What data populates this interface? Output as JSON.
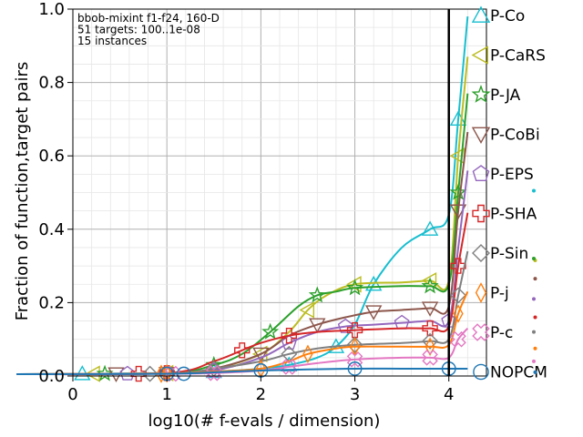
{
  "chart_data": {
    "type": "line",
    "annotation_lines": [
      "bbob-mixint f1-f24, 160-D",
      "51 targets: 100..1e-08",
      "15 instances"
    ],
    "xlabel": "log10(# f-evals / dimension)",
    "ylabel": "Fraction of function,target pairs",
    "xlim": [
      0,
      4.4
    ],
    "ylim": [
      0,
      1
    ],
    "x_ticks": [
      "0",
      "1",
      "2",
      "3",
      "4"
    ],
    "y_ticks": [
      "0.0",
      "0.2",
      "0.4",
      "0.6",
      "0.8",
      "1.0"
    ],
    "budget_line_x": 4,
    "grid": true,
    "legend_placement": "right",
    "series": [
      {
        "name": "P-Co",
        "color": "#17becf",
        "marker": "triangle-up",
        "x": [
          -0.6,
          1.0,
          1.5,
          2.0,
          2.3,
          2.6,
          2.8,
          3.0,
          3.2,
          3.5,
          3.8,
          4.0,
          4.1,
          4.2
        ],
        "y": [
          0.005,
          0.008,
          0.012,
          0.02,
          0.03,
          0.05,
          0.08,
          0.14,
          0.25,
          0.35,
          0.4,
          0.44,
          0.7,
          0.98
        ],
        "end_y": 0.98
      },
      {
        "name": "P-CaRS",
        "color": "#bcbd22",
        "marker": "triangle-left",
        "x": [
          -0.6,
          1.0,
          1.5,
          2.0,
          2.3,
          2.5,
          2.7,
          3.0,
          3.5,
          3.8,
          4.0,
          4.1,
          4.2
        ],
        "y": [
          0.005,
          0.008,
          0.02,
          0.06,
          0.12,
          0.18,
          0.22,
          0.25,
          0.255,
          0.26,
          0.26,
          0.6,
          0.87
        ],
        "end_y": 0.87
      },
      {
        "name": "P-JA",
        "color": "#2ca02c",
        "marker": "star",
        "x": [
          -0.6,
          1.0,
          1.5,
          1.8,
          2.1,
          2.4,
          2.6,
          2.8,
          3.0,
          3.5,
          3.8,
          4.0,
          4.1,
          4.2
        ],
        "y": [
          0.005,
          0.008,
          0.03,
          0.06,
          0.12,
          0.19,
          0.22,
          0.23,
          0.24,
          0.245,
          0.245,
          0.25,
          0.5,
          0.77
        ],
        "end_y": 0.77
      },
      {
        "name": "P-CoBi",
        "color": "#8c564b",
        "marker": "triangle-down",
        "x": [
          -0.6,
          1.0,
          1.5,
          2.0,
          2.3,
          2.6,
          2.9,
          3.2,
          3.5,
          3.8,
          4.0,
          4.1,
          4.2
        ],
        "y": [
          0.005,
          0.007,
          0.02,
          0.06,
          0.11,
          0.14,
          0.16,
          0.175,
          0.18,
          0.185,
          0.19,
          0.45,
          0.665
        ],
        "end_y": 0.665
      },
      {
        "name": "P-EPS",
        "color": "#9467bd",
        "marker": "pentagon",
        "x": [
          -0.6,
          1.0,
          1.5,
          2.0,
          2.3,
          2.6,
          2.9,
          3.2,
          3.5,
          3.8,
          4.0,
          4.1,
          4.2
        ],
        "y": [
          0.005,
          0.007,
          0.015,
          0.05,
          0.09,
          0.12,
          0.135,
          0.14,
          0.145,
          0.15,
          0.15,
          0.35,
          0.56
        ],
        "end_y": 0.56
      },
      {
        "name": "P-SHA",
        "color": "#d62728",
        "marker": "plus",
        "x": [
          -0.6,
          1.0,
          1.5,
          1.8,
          2.0,
          2.3,
          2.6,
          3.0,
          3.5,
          3.8,
          4.0,
          4.1,
          4.2
        ],
        "y": [
          0.005,
          0.008,
          0.04,
          0.07,
          0.09,
          0.11,
          0.12,
          0.125,
          0.13,
          0.13,
          0.135,
          0.3,
          0.445
        ],
        "end_y": 0.445
      },
      {
        "name": "P-Sin",
        "color": "#7f7f7f",
        "marker": "diamond",
        "x": [
          -0.6,
          1.0,
          1.5,
          2.0,
          2.3,
          2.6,
          3.0,
          3.5,
          3.8,
          4.0,
          4.1,
          4.2
        ],
        "y": [
          0.005,
          0.007,
          0.02,
          0.04,
          0.06,
          0.075,
          0.085,
          0.09,
          0.095,
          0.1,
          0.22,
          0.34
        ],
        "end_y": 0.34
      },
      {
        "name": "P-j",
        "color": "#ff7f0e",
        "marker": "diamond-thin",
        "x": [
          -0.6,
          1.0,
          1.5,
          2.0,
          2.3,
          2.5,
          2.8,
          3.0,
          3.5,
          3.8,
          4.0,
          4.1,
          4.2
        ],
        "y": [
          0.005,
          0.007,
          0.012,
          0.02,
          0.04,
          0.06,
          0.075,
          0.08,
          0.08,
          0.08,
          0.085,
          0.17,
          0.23
        ],
        "end_y": 0.23
      },
      {
        "name": "P-c",
        "color": "#e377c2",
        "marker": "cross",
        "x": [
          -0.6,
          1.0,
          1.5,
          2.0,
          2.3,
          2.6,
          3.0,
          3.5,
          3.8,
          4.0,
          4.1,
          4.2
        ],
        "y": [
          0.005,
          0.006,
          0.008,
          0.015,
          0.025,
          0.035,
          0.045,
          0.05,
          0.05,
          0.05,
          0.1,
          0.13
        ],
        "end_y": 0.13
      },
      {
        "name": "NOPCM",
        "color": "#1f77b4",
        "marker": "circle",
        "x": [
          -0.6,
          1.0,
          1.5,
          2.0,
          2.5,
          3.0,
          3.5,
          4.0,
          4.1,
          4.2
        ],
        "y": [
          0.005,
          0.006,
          0.01,
          0.015,
          0.018,
          0.02,
          0.02,
          0.02,
          0.02,
          0.02
        ],
        "end_y": 0.02
      }
    ],
    "dots": [
      {
        "color": "#17becf",
        "y": 0.52
      },
      {
        "color": "#bcbd22",
        "y": 0.33
      },
      {
        "color": "#2ca02c",
        "y": 0.335
      },
      {
        "color": "#8c564b",
        "y": 0.28
      },
      {
        "color": "#9467bd",
        "y": 0.225
      },
      {
        "color": "#d62728",
        "y": 0.175
      },
      {
        "color": "#7f7f7f",
        "y": 0.135
      },
      {
        "color": "#ff7f0e",
        "y": 0.09
      },
      {
        "color": "#e377c2",
        "y": 0.055
      },
      {
        "color": "#1f77b4",
        "y": 0.025
      }
    ]
  }
}
